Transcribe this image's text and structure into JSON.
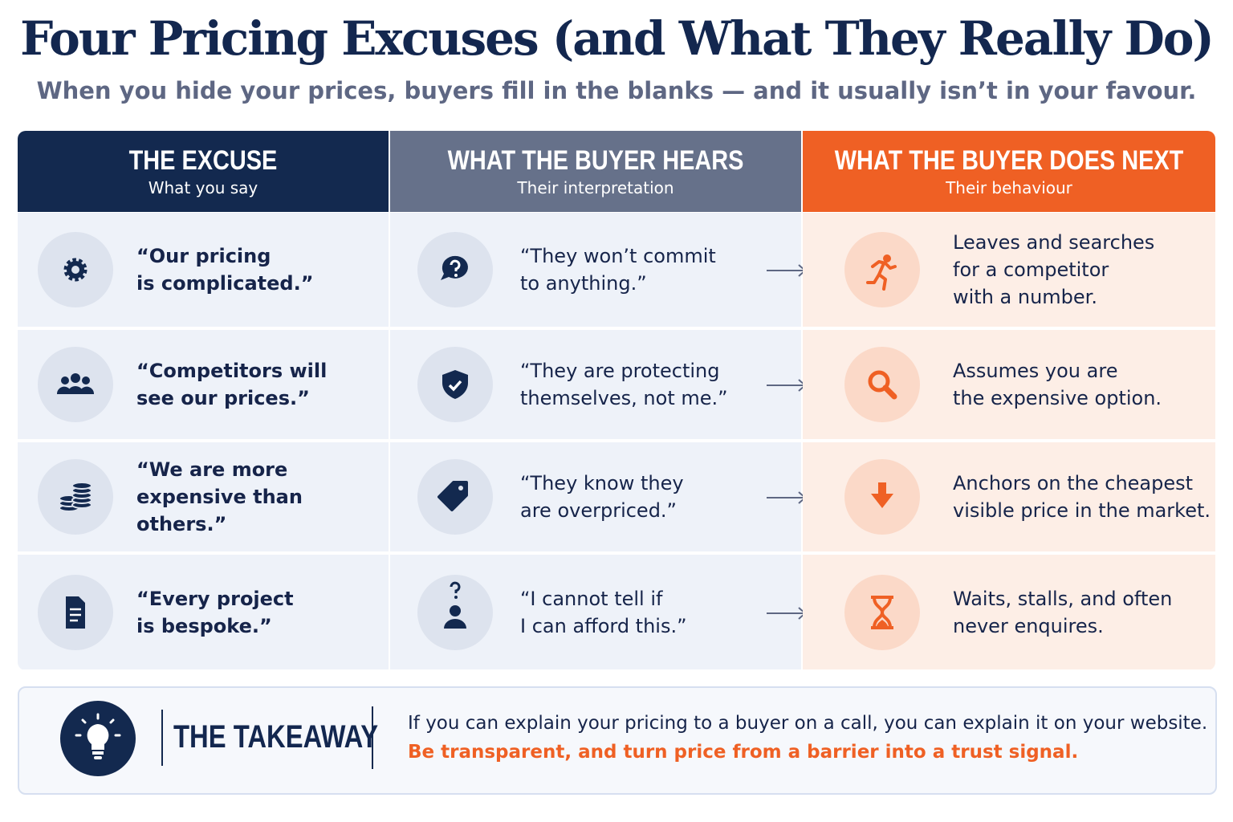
{
  "header": {
    "title": "Four Pricing Excuses (and What They Really Do)",
    "subtitle": "When you hide your prices, buyers fill in the blanks — and it usually isn’t in your favour."
  },
  "table": {
    "columns": [
      {
        "title": "THE EXCUSE",
        "subtitle": "What you say"
      },
      {
        "title": "WHAT THE BUYER HEARS",
        "subtitle": "Their interpretation"
      },
      {
        "title": "WHAT THE BUYER DOES NEXT",
        "subtitle": "Their behaviour"
      }
    ],
    "rows": [
      [
        "“Our pricing\nis complicated.”",
        "“They won’t commit\nto anything.”",
        "Leaves and searches\nfor a competitor\nwith a number."
      ],
      [
        "“Competitors will\nsee our prices.”",
        "“They are protecting\nthemselves, not me.”",
        "Assumes you are\nthe expensive option."
      ],
      [
        "“We are more\nexpensive than others.”",
        "“They know they\nare overpriced.”",
        "Anchors on the cheapest\nvisible price in the market."
      ],
      [
        "“Every project\nis bespoke.”",
        "“I cannot tell if\nI can afford this.”",
        "Waits, stalls, and often\nnever enquires."
      ]
    ]
  },
  "takeaway": {
    "label": "THE TAKEAWAY",
    "text": "If you can explain your pricing to a buyer on a call, you can explain it on your website.",
    "highlight": "Be transparent, and turn price from a barrier into a trust signal."
  }
}
